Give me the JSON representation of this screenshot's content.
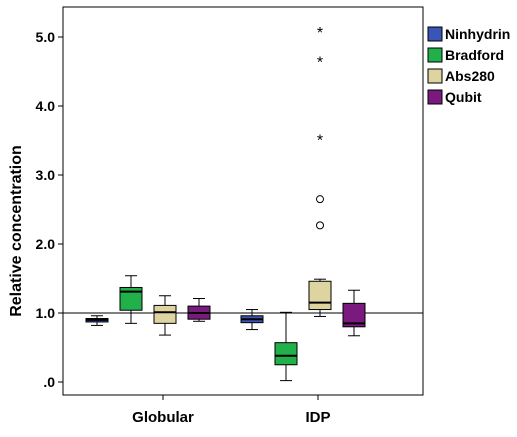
{
  "chart_data": {
    "type": "boxplot",
    "ylabel": "Relative concentration",
    "xlabel": "",
    "ylim": [
      -0.2,
      5.5
    ],
    "yticks": [
      {
        "value": 0,
        "label": ".0"
      },
      {
        "value": 1,
        "label": "1.0"
      },
      {
        "value": 2,
        "label": "2.0"
      },
      {
        "value": 3,
        "label": "3.0"
      },
      {
        "value": 4,
        "label": "4.0"
      },
      {
        "value": 5,
        "label": "5.0"
      }
    ],
    "reference_line": 1.0,
    "categories": [
      "Globular",
      "IDP"
    ],
    "legend_position": "right",
    "series": [
      {
        "name": "Ninhydrin",
        "color": "#3a55b5",
        "boxes": [
          {
            "category": "Globular",
            "min": 0.82,
            "q1": 0.87,
            "median": 0.9,
            "q3": 0.92,
            "max": 0.96,
            "mild_outliers": [],
            "extreme_outliers": []
          },
          {
            "category": "IDP",
            "min": 0.76,
            "q1": 0.86,
            "median": 0.91,
            "q3": 0.96,
            "max": 1.05,
            "mild_outliers": [],
            "extreme_outliers": []
          }
        ]
      },
      {
        "name": "Bradford",
        "color": "#22b04a",
        "boxes": [
          {
            "category": "Globular",
            "min": 0.85,
            "q1": 1.04,
            "median": 1.31,
            "q3": 1.37,
            "max": 1.54,
            "mild_outliers": [],
            "extreme_outliers": []
          },
          {
            "category": "IDP",
            "min": 0.02,
            "q1": 0.25,
            "median": 0.38,
            "q3": 0.57,
            "max": 1.01,
            "mild_outliers": [],
            "extreme_outliers": []
          }
        ]
      },
      {
        "name": "Abs280",
        "color": "#ddd4a0",
        "boxes": [
          {
            "category": "Globular",
            "min": 0.68,
            "q1": 0.85,
            "median": 1.01,
            "q3": 1.11,
            "max": 1.25,
            "mild_outliers": [],
            "extreme_outliers": []
          },
          {
            "category": "IDP",
            "min": 0.95,
            "q1": 1.05,
            "median": 1.15,
            "q3": 1.46,
            "max": 1.49,
            "mild_outliers": [
              2.27,
              2.65
            ],
            "extreme_outliers": [
              3.53,
              4.66,
              5.09
            ]
          }
        ]
      },
      {
        "name": "Qubit",
        "color": "#7a1a7e",
        "boxes": [
          {
            "category": "Globular",
            "min": 0.88,
            "q1": 0.91,
            "median": 1.0,
            "q3": 1.1,
            "max": 1.21,
            "mild_outliers": [],
            "extreme_outliers": []
          },
          {
            "category": "IDP",
            "min": 0.67,
            "q1": 0.8,
            "median": 0.85,
            "q3": 1.14,
            "max": 1.33,
            "mild_outliers": [],
            "extreme_outliers": []
          }
        ]
      }
    ]
  }
}
